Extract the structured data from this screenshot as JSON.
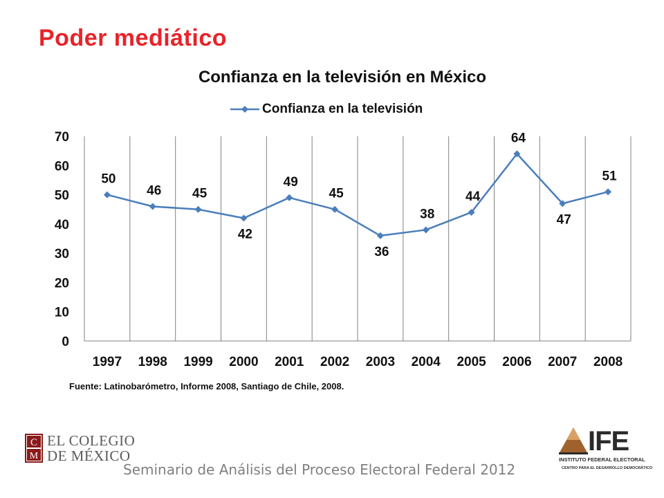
{
  "slide": {
    "title": "Poder mediático",
    "source_prefix": "Fuente:",
    "source_text": " Latinobarómetro, Informe 2008, Santiago de Chile, 2008.",
    "footer": "Seminario de Análisis del Proceso Electoral Federal 2012"
  },
  "logos": {
    "colmex_line1": "EL COLEGIO",
    "colmex_line2": "DE MÉXICO",
    "colmex_mark_letters": "CM",
    "ife_name": "IFE",
    "ife_full": "INSTITUTO FEDERAL ELECTORAL",
    "ife_center": "CENTRO PARA EL DESARROLLO DEMOCRÁTICO"
  },
  "chart_data": {
    "type": "line",
    "title": "Confianza en la televisión en México",
    "xlabel": "",
    "ylabel": "",
    "categories": [
      "1997",
      "1998",
      "1999",
      "2000",
      "2001",
      "2002",
      "2003",
      "2004",
      "2005",
      "2006",
      "2007",
      "2008"
    ],
    "series": [
      {
        "name": "Confianza en la televisión",
        "values": [
          50,
          46,
          45,
          42,
          49,
          45,
          36,
          38,
          44,
          64,
          47,
          51
        ]
      }
    ],
    "ylim": [
      0,
      70
    ],
    "yticks": [
      0,
      10,
      20,
      30,
      40,
      50,
      60,
      70
    ],
    "grid": "vertical",
    "legend": "top",
    "data_labels": true,
    "colors": {
      "series": "#4a7ebb",
      "grid": "#808080",
      "title": "#e8232a"
    }
  }
}
